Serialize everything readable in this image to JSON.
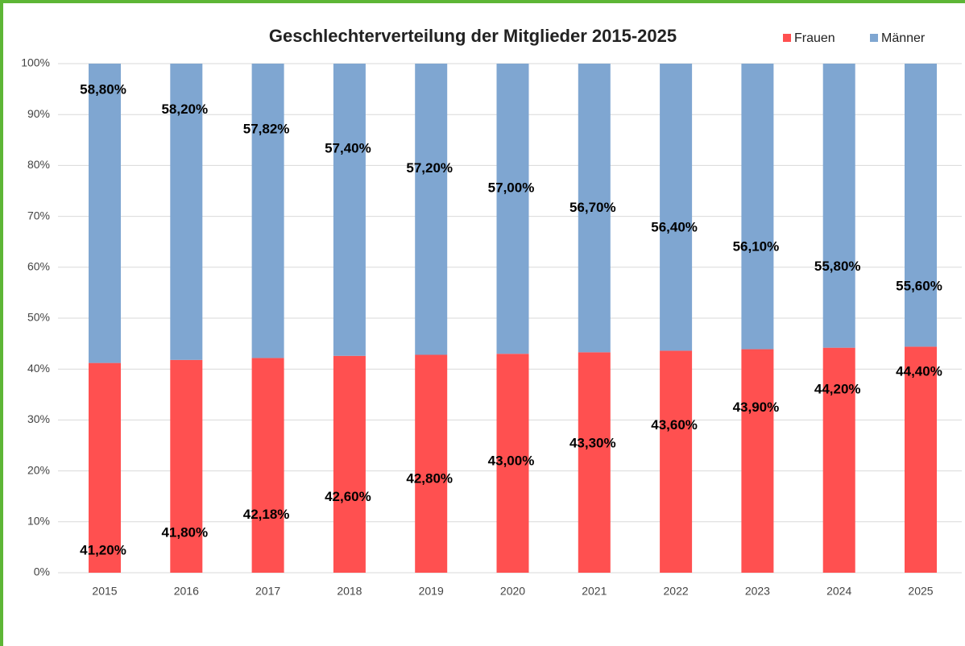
{
  "chart_data": {
    "type": "stacked_bar",
    "title": "Geschlechterverteilung der Mitglieder 2015-2025",
    "categories": [
      "2015",
      "2016",
      "2017",
      "2018",
      "2019",
      "2020",
      "2021",
      "2022",
      "2023",
      "2024",
      "2025"
    ],
    "series": [
      {
        "name": "Frauen",
        "color": "#ff5050",
        "values": [
          41.2,
          41.8,
          42.18,
          42.6,
          42.8,
          43.0,
          43.3,
          43.6,
          43.9,
          44.2,
          44.4
        ],
        "value_labels": [
          "41,20%",
          "41,80%",
          "42,18%",
          "42,60%",
          "42,80%",
          "43,00%",
          "43,30%",
          "43,60%",
          "43,90%",
          "44,20%",
          "44,40%"
        ]
      },
      {
        "name": "Männer",
        "color": "#7fa6d1",
        "values": [
          58.8,
          58.2,
          57.82,
          57.4,
          57.2,
          57.0,
          56.7,
          56.4,
          56.1,
          55.8,
          55.6
        ],
        "value_labels": [
          "58,80%",
          "58,20%",
          "57,82%",
          "57,40%",
          "57,20%",
          "57,00%",
          "56,70%",
          "56,40%",
          "56,10%",
          "55,80%",
          "55,60%"
        ]
      }
    ],
    "ylim": [
      0,
      100
    ],
    "yticks": [
      {
        "value": 0,
        "label": "0%"
      },
      {
        "value": 10,
        "label": "10%"
      },
      {
        "value": 20,
        "label": "20%"
      },
      {
        "value": 30,
        "label": "30%"
      },
      {
        "value": 40,
        "label": "40%"
      },
      {
        "value": 50,
        "label": "50%"
      },
      {
        "value": 60,
        "label": "60%"
      },
      {
        "value": 70,
        "label": "70%"
      },
      {
        "value": 80,
        "label": "80%"
      },
      {
        "value": 90,
        "label": "90%"
      },
      {
        "value": 100,
        "label": "100%"
      }
    ],
    "grid": true,
    "legend": "top-right"
  }
}
